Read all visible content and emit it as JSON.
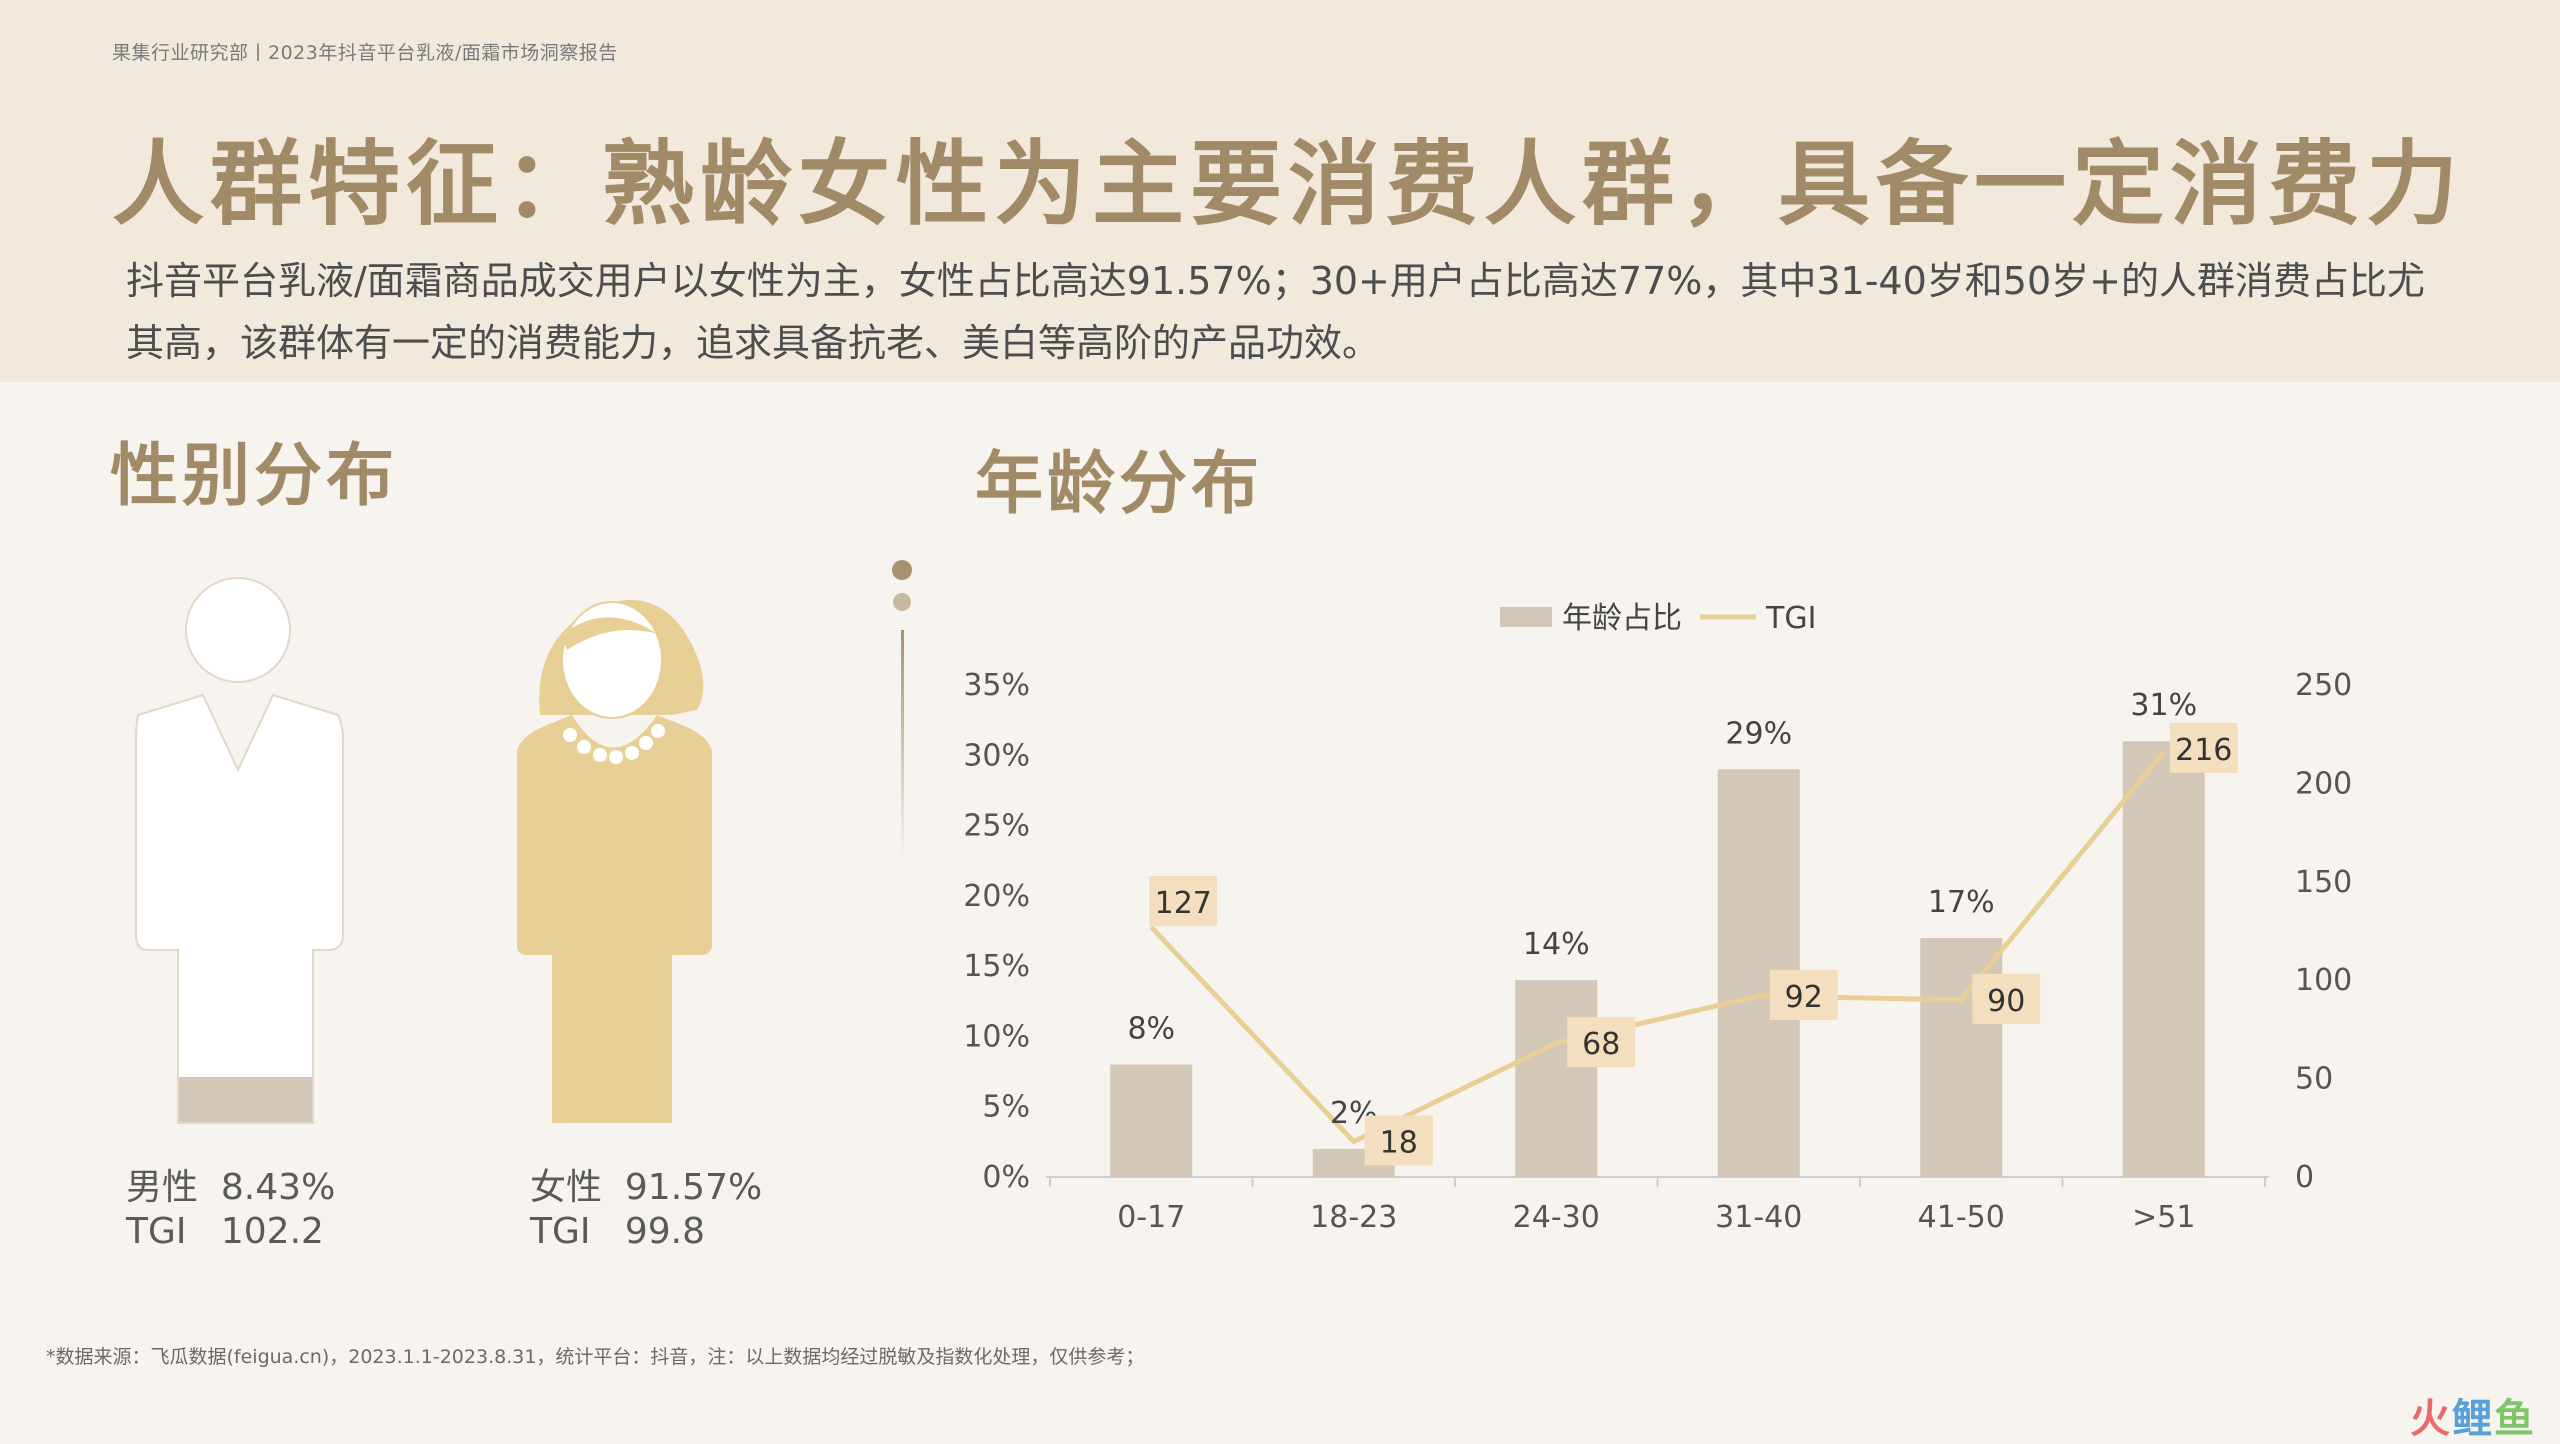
{
  "header": {
    "breadcrumb": "果集行业研究部丨2023年抖音平台乳液/面霜市场洞察报告",
    "title": "人群特征：熟龄女性为主要消费人群，具备一定消费力",
    "subtitle": "抖音平台乳液/面霜商品成交用户以女性为主，女性占比高达91.57%；30+用户占比高达77%，其中31-40岁和50岁+的人群消费占比尤其高，该群体有一定的消费能力，追求具备抗老、美白等高阶的产品功效。"
  },
  "gender": {
    "title": "性别分布",
    "male": {
      "label": "男性",
      "share": "8.43%",
      "share_value": 8.43,
      "tgi_label": "TGI",
      "tgi": "102.2"
    },
    "female": {
      "label": "女性",
      "share": "91.57%",
      "share_value": 91.57,
      "tgi_label": "TGI",
      "tgi": "99.8"
    }
  },
  "age": {
    "title": "年龄分布"
  },
  "chart_data": {
    "type": "bar",
    "categories": [
      "0-17",
      "18-23",
      "24-30",
      "31-40",
      "41-50",
      ">51"
    ],
    "series": [
      {
        "name": "年龄占比",
        "type": "bar",
        "axis": "left",
        "values": [
          8,
          2,
          14,
          29,
          17,
          31
        ],
        "labels": [
          "8%",
          "2%",
          "14%",
          "29%",
          "17%",
          "31%"
        ]
      },
      {
        "name": "TGI",
        "type": "line",
        "axis": "right",
        "values": [
          127,
          18,
          68,
          92,
          90,
          216
        ],
        "labels": [
          "127",
          "18",
          "68",
          "92",
          "90",
          "216"
        ]
      }
    ],
    "ylim_left": [
      0,
      35
    ],
    "yticks_left": [
      "0%",
      "5%",
      "10%",
      "15%",
      "20%",
      "25%",
      "30%",
      "35%"
    ],
    "ylim_right": [
      0,
      250
    ],
    "yticks_right": [
      "0",
      "50",
      "100",
      "150",
      "200",
      "250"
    ],
    "legend_position": "top-center",
    "grid": false
  },
  "colors": {
    "accent": "#a18a66",
    "bar": "#d3c7b8",
    "line": "#e8cf96",
    "label_box": "#f3dfbd",
    "female_fill": "#e8cf96",
    "male_fill": "#ffffff",
    "male_share_fill": "#d3c7b8"
  },
  "footnote": "*数据来源：飞瓜数据(feigua.cn)，2023.1.1-2023.8.31，统计平台：抖音，注：以上数据均经过脱敏及指数化处理，仅供参考；",
  "watermark": [
    "火",
    "鲤",
    "鱼"
  ]
}
